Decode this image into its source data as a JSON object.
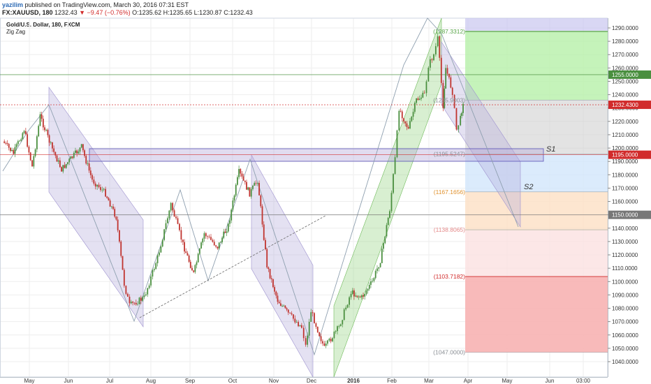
{
  "header": {
    "user": "yazilim",
    "published": "published on TradingView.com, March 30, 2016 07:31 EST",
    "symbol": "FX:XAUUSD, 180",
    "last": "1232.43",
    "change": "−9.47 (−0.76%)",
    "ohlc": "O:1235.62 H:1235.65 L:1230.87 C:1232.43"
  },
  "indicator": {
    "title": "Gold/U.S. Dollar, 180, FXCM",
    "zigzag": "Zig Zag"
  },
  "annotations": {
    "s1": "S1",
    "s2": "S2"
  },
  "colors": {
    "up": "#4a8f3f",
    "down": "#c0342f",
    "channel_down": "#b3a8d9",
    "channel_up": "#8fd07a",
    "price_tag": "#d12b2b",
    "fib_green": "#b7f0a9",
    "fib_red": "#f7b3b3"
  },
  "chart_data": {
    "type": "line",
    "ylim": [
      1036,
      1298
    ],
    "x_ticks": [
      "May",
      "Jun",
      "Jul",
      "Aug",
      "Sep",
      "Oct",
      "Nov",
      "Dec",
      "2016",
      "Feb",
      "Mar",
      "Apr",
      "May",
      "Jun",
      "03:00"
    ],
    "y_ticks": [
      1040,
      1050,
      1060,
      1070,
      1080,
      1090,
      1100,
      1110,
      1120,
      1130,
      1140,
      1150,
      1160,
      1170,
      1180,
      1190,
      1200,
      1210,
      1220,
      1230,
      1240,
      1250,
      1260,
      1270,
      1280,
      1290
    ],
    "y_tick_labels": [
      "1040.0000",
      "1050.0000",
      "1060.0000",
      "1070.0000",
      "1080.0000",
      "1090.0000",
      "1100.0000",
      "1110.0000",
      "1120.0000",
      "1130.0000",
      "1140.0000",
      "1150.0000",
      "1160.0000",
      "1170.0000",
      "1180.0000",
      "1190.0000",
      "1200.0000",
      "1210.0000",
      "1220.0000",
      "1230.0000",
      "1240.0000",
      "1250.0000",
      "1260.0000",
      "1270.0000",
      "1280.0000",
      "1290.0000"
    ],
    "price_line": [
      {
        "x": "2015-04-20",
        "y": 1205
      },
      {
        "x": "2015-04-28",
        "y": 1196
      },
      {
        "x": "2015-05-06",
        "y": 1214
      },
      {
        "x": "2015-05-12",
        "y": 1186
      },
      {
        "x": "2015-05-18",
        "y": 1224
      },
      {
        "x": "2015-05-26",
        "y": 1202
      },
      {
        "x": "2015-06-03",
        "y": 1184
      },
      {
        "x": "2015-06-10",
        "y": 1192
      },
      {
        "x": "2015-06-18",
        "y": 1201
      },
      {
        "x": "2015-06-26",
        "y": 1176
      },
      {
        "x": "2015-07-06",
        "y": 1166
      },
      {
        "x": "2015-07-14",
        "y": 1148
      },
      {
        "x": "2015-07-20",
        "y": 1098
      },
      {
        "x": "2015-07-24",
        "y": 1082
      },
      {
        "x": "2015-08-04",
        "y": 1088
      },
      {
        "x": "2015-08-14",
        "y": 1118
      },
      {
        "x": "2015-08-24",
        "y": 1158
      },
      {
        "x": "2015-09-02",
        "y": 1128
      },
      {
        "x": "2015-09-10",
        "y": 1106
      },
      {
        "x": "2015-09-18",
        "y": 1136
      },
      {
        "x": "2015-09-28",
        "y": 1126
      },
      {
        "x": "2015-10-06",
        "y": 1142
      },
      {
        "x": "2015-10-14",
        "y": 1182
      },
      {
        "x": "2015-10-22",
        "y": 1166
      },
      {
        "x": "2015-10-28",
        "y": 1176
      },
      {
        "x": "2015-11-04",
        "y": 1112
      },
      {
        "x": "2015-11-12",
        "y": 1086
      },
      {
        "x": "2015-11-20",
        "y": 1076
      },
      {
        "x": "2015-11-30",
        "y": 1066
      },
      {
        "x": "2015-12-03",
        "y": 1052
      },
      {
        "x": "2015-12-07",
        "y": 1078
      },
      {
        "x": "2015-12-17",
        "y": 1050
      },
      {
        "x": "2015-12-28",
        "y": 1066
      },
      {
        "x": "2016-01-06",
        "y": 1092
      },
      {
        "x": "2016-01-14",
        "y": 1088
      },
      {
        "x": "2016-01-22",
        "y": 1100
      },
      {
        "x": "2016-01-28",
        "y": 1116
      },
      {
        "x": "2016-02-04",
        "y": 1154
      },
      {
        "x": "2016-02-08",
        "y": 1192
      },
      {
        "x": "2016-02-11",
        "y": 1230
      },
      {
        "x": "2016-02-18",
        "y": 1214
      },
      {
        "x": "2016-02-24",
        "y": 1236
      },
      {
        "x": "2016-03-01",
        "y": 1240
      },
      {
        "x": "2016-03-04",
        "y": 1262
      },
      {
        "x": "2016-03-08",
        "y": 1270
      },
      {
        "x": "2016-03-11",
        "y": 1282
      },
      {
        "x": "2016-03-15",
        "y": 1232
      },
      {
        "x": "2016-03-17",
        "y": 1260
      },
      {
        "x": "2016-03-22",
        "y": 1242
      },
      {
        "x": "2016-03-25",
        "y": 1214
      },
      {
        "x": "2016-03-28",
        "y": 1222
      },
      {
        "x": "2016-03-30",
        "y": 1235
      }
    ],
    "fib_levels": [
      {
        "label": "(1287.3312)",
        "value": 1287.3312
      },
      {
        "label": "(1235.9003)",
        "value": 1235.9003
      },
      {
        "label": "(1195.5247)",
        "value": 1195.5247
      },
      {
        "label": "(1167.1656)",
        "value": 1167.1656
      },
      {
        "label": "(1138.8065)",
        "value": 1138.8065
      },
      {
        "label": "(1103.7182)",
        "value": 1103.7182
      },
      {
        "label": "(1047.0000)",
        "value": 1047.0
      }
    ],
    "price_tags": [
      {
        "label": "1255.0000",
        "value": 1255.0,
        "color": "#4a8f3f"
      },
      {
        "label": "1232.4300",
        "value": 1232.43,
        "color": "#d12b2b"
      },
      {
        "label": "1195.0000",
        "value": 1195.0,
        "color": "#d12b2b"
      },
      {
        "label": "1150.0000",
        "value": 1150.0,
        "color": "#777777"
      }
    ]
  }
}
